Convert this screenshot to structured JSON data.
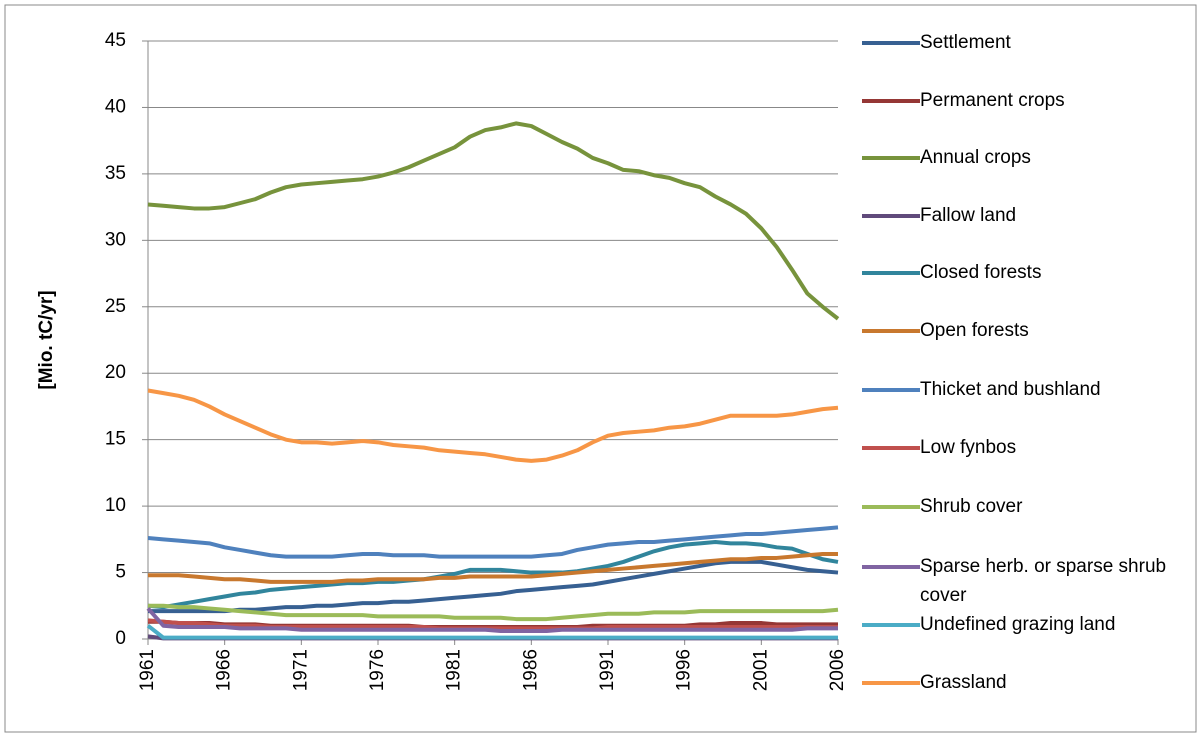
{
  "chart_data": {
    "type": "line",
    "y_label": "[Mio. tC/yr]",
    "x": [
      1961,
      1962,
      1963,
      1964,
      1965,
      1966,
      1967,
      1968,
      1969,
      1970,
      1971,
      1972,
      1973,
      1974,
      1975,
      1976,
      1977,
      1978,
      1979,
      1980,
      1981,
      1982,
      1983,
      1984,
      1985,
      1986,
      1987,
      1988,
      1989,
      1990,
      1991,
      1992,
      1993,
      1994,
      1995,
      1996,
      1997,
      1998,
      1999,
      2000,
      2001,
      2002,
      2003,
      2004,
      2005,
      2006
    ],
    "xlim": [
      1961,
      2006
    ],
    "xticks": [
      1961,
      1966,
      1971,
      1976,
      1981,
      1986,
      1991,
      1996,
      2001,
      2006
    ],
    "ylim": [
      0,
      45
    ],
    "yticks": [
      0,
      5,
      10,
      15,
      20,
      25,
      30,
      35,
      40,
      45
    ],
    "grid": true,
    "series": [
      {
        "name": "Settlement",
        "color": "#376092",
        "values": [
          2.1,
          2.1,
          2.1,
          2.1,
          2.1,
          2.1,
          2.2,
          2.2,
          2.3,
          2.4,
          2.4,
          2.5,
          2.5,
          2.6,
          2.7,
          2.7,
          2.8,
          2.8,
          2.9,
          3.0,
          3.1,
          3.2,
          3.3,
          3.4,
          3.6,
          3.7,
          3.8,
          3.9,
          4.0,
          4.1,
          4.3,
          4.5,
          4.7,
          4.9,
          5.1,
          5.3,
          5.5,
          5.7,
          5.8,
          5.8,
          5.8,
          5.6,
          5.4,
          5.2,
          5.1,
          5.0
        ]
      },
      {
        "name": "Permanent crops",
        "color": "#953735",
        "values": [
          1.3,
          1.3,
          1.2,
          1.2,
          1.2,
          1.1,
          1.1,
          1.1,
          1.0,
          1.0,
          1.0,
          1.0,
          1.0,
          1.0,
          1.0,
          1.0,
          1.0,
          1.0,
          0.9,
          0.9,
          0.9,
          0.9,
          0.9,
          0.9,
          0.9,
          0.9,
          0.9,
          0.9,
          0.9,
          1.0,
          1.0,
          1.0,
          1.0,
          1.0,
          1.0,
          1.0,
          1.1,
          1.1,
          1.2,
          1.2,
          1.2,
          1.1,
          1.1,
          1.1,
          1.1,
          1.1
        ]
      },
      {
        "name": "Annual crops",
        "color": "#77933c",
        "values": [
          32.7,
          32.6,
          32.5,
          32.4,
          32.4,
          32.5,
          32.8,
          33.1,
          33.6,
          34.0,
          34.2,
          34.3,
          34.4,
          34.5,
          34.6,
          34.8,
          35.1,
          35.5,
          36.0,
          36.5,
          37.0,
          37.8,
          38.3,
          38.5,
          38.8,
          38.6,
          38.0,
          37.4,
          36.9,
          36.2,
          35.8,
          35.3,
          35.2,
          34.9,
          34.7,
          34.3,
          34.0,
          33.3,
          32.7,
          32.0,
          30.9,
          29.5,
          27.8,
          26.0,
          25.0,
          24.1
        ]
      },
      {
        "name": "Fallow land",
        "color": "#604a7b",
        "values": [
          0.2,
          0.05,
          0.05,
          0.05,
          0.05,
          0.05,
          0.05,
          0.05,
          0.05,
          0.05,
          0.05,
          0.05,
          0.05,
          0.05,
          0.05,
          0.05,
          0.05,
          0.05,
          0.05,
          0.05,
          0.05,
          0.05,
          0.05,
          0.05,
          0.05,
          0.05,
          0.05,
          0.05,
          0.05,
          0.05,
          0.05,
          0.05,
          0.05,
          0.05,
          0.05,
          0.05,
          0.05,
          0.05,
          0.05,
          0.05,
          0.05,
          0.05,
          0.05,
          0.05,
          0.05,
          0.05
        ]
      },
      {
        "name": "Closed forests",
        "color": "#31859c",
        "values": [
          2.5,
          2.4,
          2.6,
          2.8,
          3.0,
          3.2,
          3.4,
          3.5,
          3.7,
          3.8,
          3.9,
          4.0,
          4.1,
          4.2,
          4.2,
          4.3,
          4.3,
          4.4,
          4.5,
          4.7,
          4.9,
          5.2,
          5.2,
          5.2,
          5.1,
          5.0,
          5.0,
          5.0,
          5.1,
          5.3,
          5.5,
          5.8,
          6.2,
          6.6,
          6.9,
          7.1,
          7.2,
          7.3,
          7.2,
          7.2,
          7.1,
          6.9,
          6.8,
          6.4,
          6.0,
          5.8
        ]
      },
      {
        "name": "Open forests",
        "color": "#c8782e",
        "values": [
          4.8,
          4.8,
          4.8,
          4.7,
          4.6,
          4.5,
          4.5,
          4.4,
          4.3,
          4.3,
          4.3,
          4.3,
          4.3,
          4.4,
          4.4,
          4.5,
          4.5,
          4.5,
          4.5,
          4.6,
          4.6,
          4.7,
          4.7,
          4.7,
          4.7,
          4.7,
          4.8,
          4.9,
          5.0,
          5.1,
          5.2,
          5.3,
          5.4,
          5.5,
          5.6,
          5.7,
          5.8,
          5.9,
          6.0,
          6.0,
          6.1,
          6.1,
          6.2,
          6.3,
          6.4,
          6.4
        ]
      },
      {
        "name": "Thicket and bushland",
        "color": "#4f81bd",
        "values": [
          7.6,
          7.5,
          7.4,
          7.3,
          7.2,
          6.9,
          6.7,
          6.5,
          6.3,
          6.2,
          6.2,
          6.2,
          6.2,
          6.3,
          6.4,
          6.4,
          6.3,
          6.3,
          6.3,
          6.2,
          6.2,
          6.2,
          6.2,
          6.2,
          6.2,
          6.2,
          6.3,
          6.4,
          6.7,
          6.9,
          7.1,
          7.2,
          7.3,
          7.3,
          7.4,
          7.5,
          7.6,
          7.7,
          7.8,
          7.9,
          7.9,
          8.0,
          8.1,
          8.2,
          8.3,
          8.4
        ]
      },
      {
        "name": "Low fynbos",
        "color": "#c0504d",
        "values": [
          1.4,
          1.3,
          1.2,
          1.2,
          1.1,
          1.0,
          1.0,
          1.0,
          0.9,
          0.9,
          0.9,
          0.9,
          0.9,
          0.9,
          0.9,
          0.9,
          0.9,
          0.9,
          0.9,
          0.8,
          0.8,
          0.8,
          0.8,
          0.8,
          0.8,
          0.8,
          0.8,
          0.8,
          0.8,
          0.8,
          0.9,
          0.9,
          0.9,
          0.9,
          0.9,
          0.9,
          0.9,
          0.9,
          0.9,
          0.9,
          0.9,
          0.9,
          0.9,
          0.9,
          0.9,
          0.9
        ]
      },
      {
        "name": "Shrub cover",
        "color": "#9bbb59",
        "values": [
          2.5,
          2.5,
          2.4,
          2.4,
          2.3,
          2.2,
          2.1,
          2.0,
          1.9,
          1.8,
          1.8,
          1.8,
          1.8,
          1.8,
          1.8,
          1.7,
          1.7,
          1.7,
          1.7,
          1.7,
          1.6,
          1.6,
          1.6,
          1.6,
          1.5,
          1.5,
          1.5,
          1.6,
          1.7,
          1.8,
          1.9,
          1.9,
          1.9,
          2.0,
          2.0,
          2.0,
          2.1,
          2.1,
          2.1,
          2.1,
          2.1,
          2.1,
          2.1,
          2.1,
          2.1,
          2.2
        ]
      },
      {
        "name": "Sparse herb. or sparse shrub cover",
        "color": "#8064a2",
        "values": [
          2.3,
          1.0,
          0.9,
          0.9,
          0.9,
          0.9,
          0.8,
          0.8,
          0.8,
          0.8,
          0.7,
          0.7,
          0.7,
          0.7,
          0.7,
          0.7,
          0.7,
          0.7,
          0.7,
          0.7,
          0.7,
          0.7,
          0.7,
          0.6,
          0.6,
          0.6,
          0.6,
          0.7,
          0.7,
          0.7,
          0.7,
          0.7,
          0.7,
          0.7,
          0.7,
          0.7,
          0.7,
          0.7,
          0.7,
          0.7,
          0.7,
          0.7,
          0.7,
          0.8,
          0.8,
          0.8
        ]
      },
      {
        "name": "Undefined grazing land",
        "color": "#4bacc6",
        "values": [
          1.0,
          0.1,
          0.1,
          0.1,
          0.1,
          0.1,
          0.1,
          0.1,
          0.1,
          0.1,
          0.1,
          0.1,
          0.1,
          0.1,
          0.1,
          0.1,
          0.1,
          0.1,
          0.1,
          0.1,
          0.1,
          0.1,
          0.1,
          0.1,
          0.1,
          0.1,
          0.1,
          0.1,
          0.1,
          0.1,
          0.1,
          0.1,
          0.1,
          0.1,
          0.1,
          0.1,
          0.1,
          0.1,
          0.1,
          0.1,
          0.1,
          0.1,
          0.1,
          0.1,
          0.1,
          0.1
        ]
      },
      {
        "name": "Grassland",
        "color": "#f79646",
        "values": [
          18.7,
          18.5,
          18.3,
          18.0,
          17.5,
          16.9,
          16.4,
          15.9,
          15.4,
          15.0,
          14.8,
          14.8,
          14.7,
          14.8,
          14.9,
          14.8,
          14.6,
          14.5,
          14.4,
          14.2,
          14.1,
          14.0,
          13.9,
          13.7,
          13.5,
          13.4,
          13.5,
          13.8,
          14.2,
          14.8,
          15.3,
          15.5,
          15.6,
          15.7,
          15.9,
          16.0,
          16.2,
          16.5,
          16.8,
          16.8,
          16.8,
          16.8,
          16.9,
          17.1,
          17.3,
          17.4
        ]
      }
    ]
  }
}
